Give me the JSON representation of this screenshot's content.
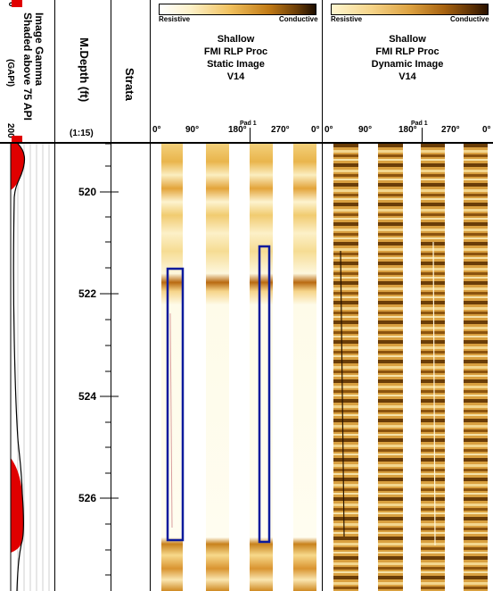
{
  "gamma": {
    "title_line1": "Image Gamma",
    "title_line2": "Shaded above 75 API",
    "unit": "(GAPI)",
    "scale_min": "0",
    "scale_max": "200"
  },
  "depth": {
    "title": "M.Depth (ft)",
    "scale": "(1:15)",
    "labels": [
      "520",
      "522",
      "524",
      "526"
    ]
  },
  "strata": {
    "title": "Strata"
  },
  "static_track": {
    "scale_left": "Resistive",
    "scale_right": "Conductive",
    "title_lines": [
      "Shallow",
      "FMI RLP Proc",
      "Static Image",
      "V14"
    ],
    "azimuths": [
      "0°",
      "90°",
      "180°",
      "270°",
      "0°"
    ],
    "pad_label": "Pad 1"
  },
  "dynamic_track": {
    "scale_left": "Resistive",
    "scale_right": "Conductive",
    "title_lines": [
      "Shallow",
      "FMI RLP Proc",
      "Dynamic Image",
      "V14"
    ],
    "azimuths": [
      "0°",
      "90°",
      "180°",
      "270°",
      "0°"
    ],
    "pad_label": "Pad 1"
  },
  "colors": {
    "gamma_fill": "#e00000",
    "box_outline": "#0b1a9c",
    "static_light": "#fbf3cf",
    "static_dark": "#c98a1e",
    "dynamic_dark": "#5a3608",
    "dynamic_light": "#e6b85a"
  }
}
